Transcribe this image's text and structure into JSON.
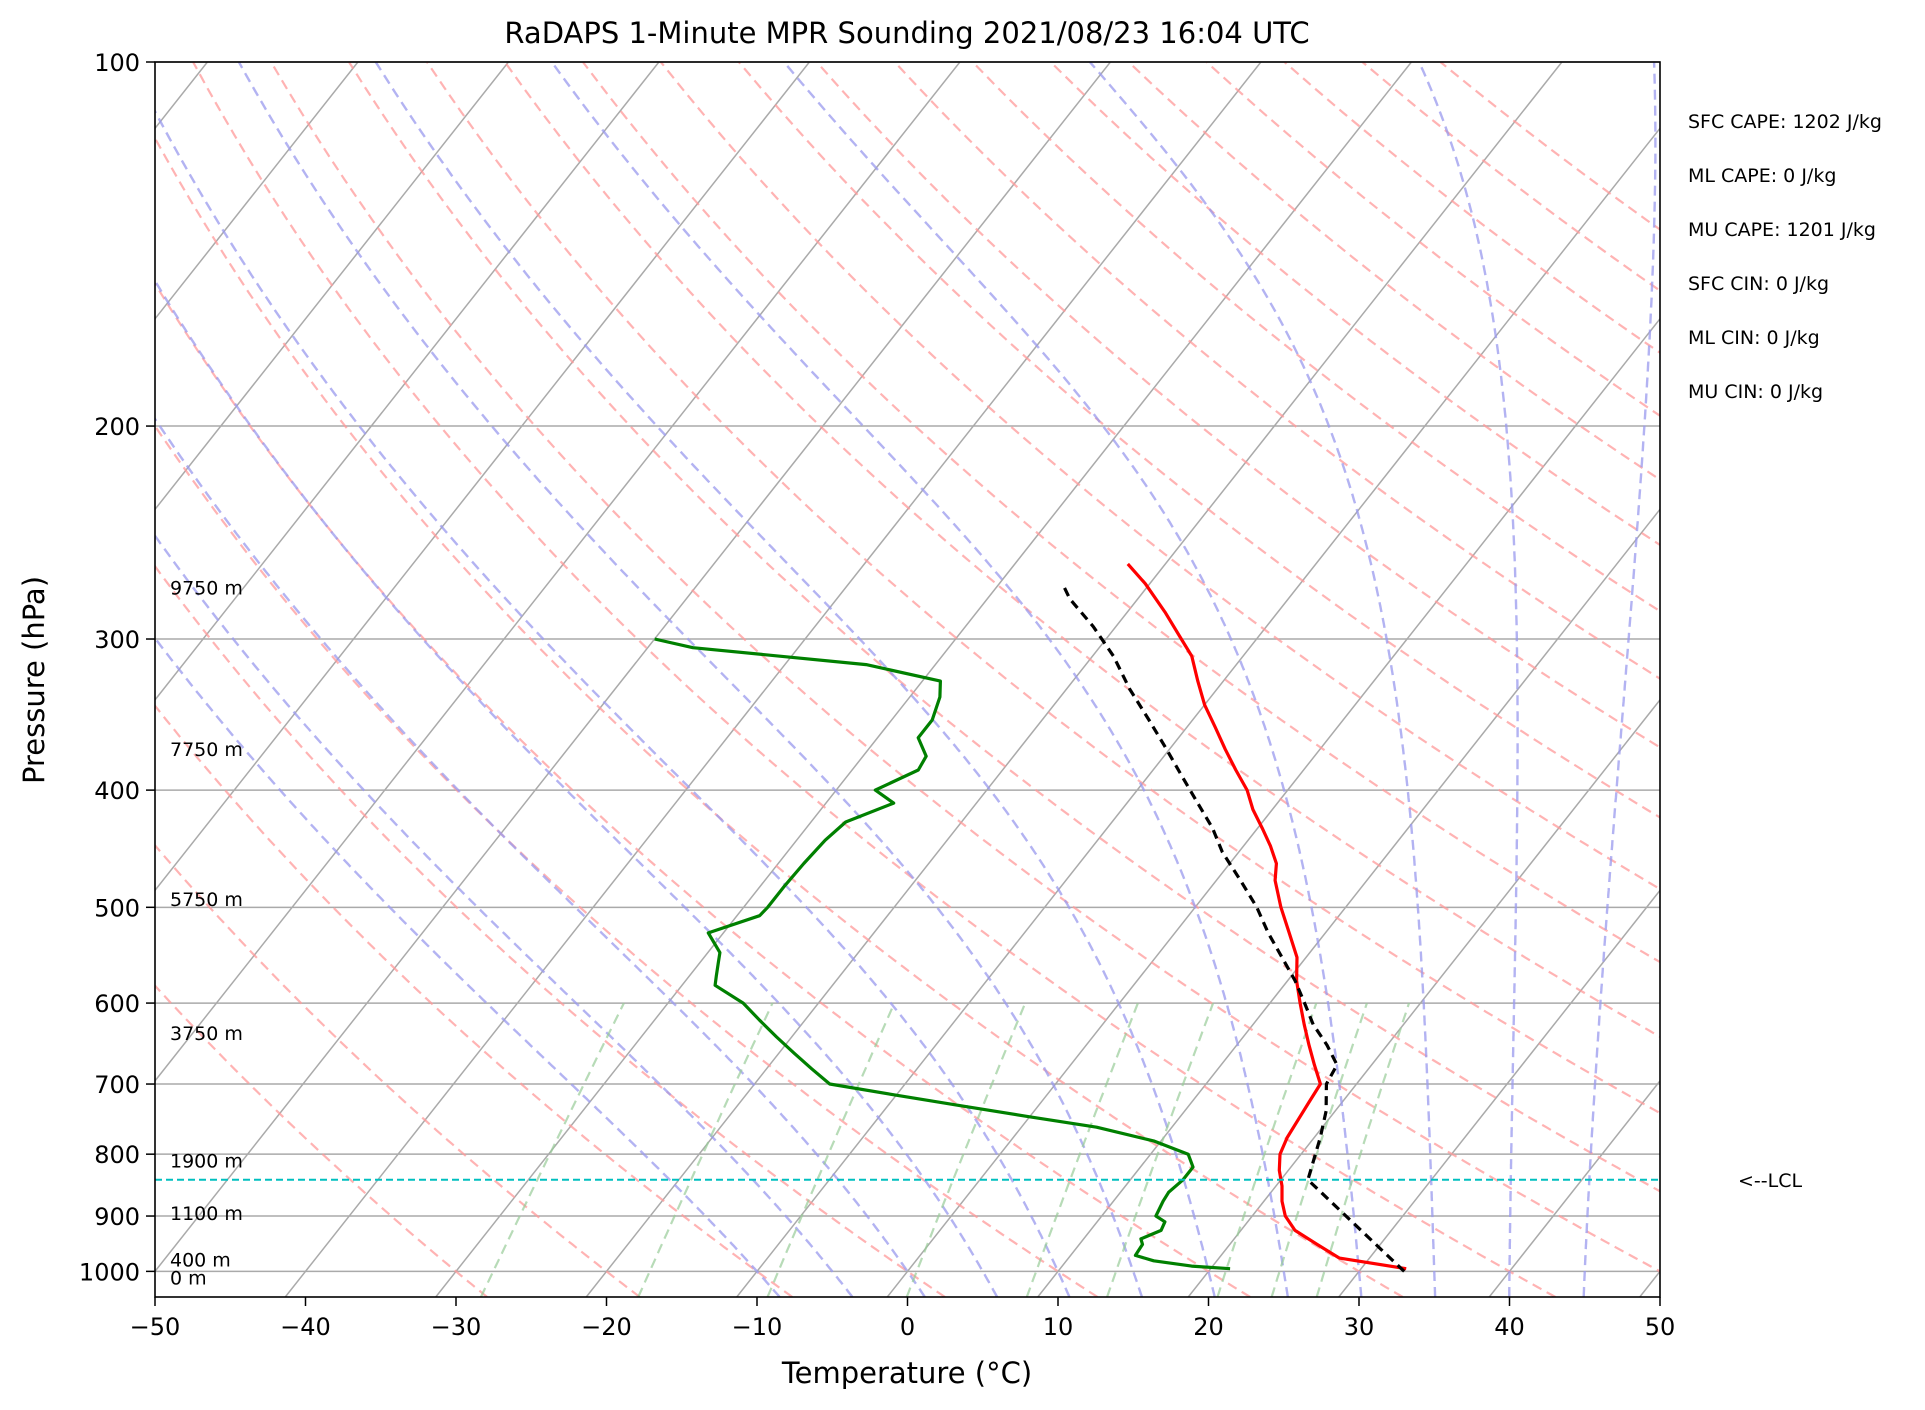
{
  "chart_data": {
    "type": "line",
    "title": "RaDAPS 1-Minute MPR Sounding 2021/08/23 16:04 UTC",
    "xlabel": "Temperature (°C)",
    "ylabel": "Pressure (hPa)",
    "xlim": [
      -50,
      50
    ],
    "ylim": [
      1050,
      100
    ],
    "y_scale": "log",
    "x_ticks": [
      -50,
      -40,
      -30,
      -20,
      -10,
      0,
      10,
      20,
      30,
      40,
      50
    ],
    "x_tick_labels": [
      "−50",
      "−40",
      "−30",
      "−20",
      "−10",
      "0",
      "10",
      "20",
      "30",
      "40",
      "50"
    ],
    "y_ticks": [
      100,
      200,
      300,
      400,
      500,
      600,
      700,
      800,
      900,
      1000
    ],
    "y_tick_labels": [
      "100",
      "200",
      "300",
      "400",
      "500",
      "600",
      "700",
      "800",
      "900",
      "1000"
    ],
    "grid": true,
    "series": [
      {
        "kind": "temperature",
        "color": "#ff0000",
        "points": [
          [
            33,
            995
          ],
          [
            28,
            975
          ],
          [
            25.8,
            950
          ],
          [
            23.6,
            925
          ],
          [
            22.2,
            900
          ],
          [
            21.2,
            875
          ],
          [
            20.4,
            850
          ],
          [
            19.4,
            825
          ],
          [
            18.6,
            800
          ],
          [
            18.2,
            775
          ],
          [
            18,
            750
          ],
          [
            17.8,
            725
          ],
          [
            17.6,
            700
          ],
          [
            16.2,
            675
          ],
          [
            14.8,
            650
          ],
          [
            13.4,
            625
          ],
          [
            12,
            600
          ],
          [
            10.6,
            575
          ],
          [
            9.4,
            550
          ],
          [
            7.6,
            525
          ],
          [
            5.7,
            500
          ],
          [
            3.9,
            475
          ],
          [
            3.1,
            460
          ],
          [
            1.8,
            445
          ],
          [
            0.3,
            430
          ],
          [
            -1.3,
            415
          ],
          [
            -2.7,
            400
          ],
          [
            -4.5,
            385
          ],
          [
            -6.3,
            370
          ],
          [
            -8.1,
            355
          ],
          [
            -10,
            340
          ],
          [
            -11.7,
            325
          ],
          [
            -13.4,
            310
          ],
          [
            -15,
            300
          ],
          [
            -17.5,
            285
          ],
          [
            -20.3,
            270
          ],
          [
            -22.5,
            260
          ]
        ]
      },
      {
        "kind": "dewpoint",
        "color": "#008000",
        "points": [
          [
            21.3,
            995
          ],
          [
            18.6,
            990
          ],
          [
            15.8,
            980
          ],
          [
            14.3,
            970
          ],
          [
            14.2,
            950
          ],
          [
            13.8,
            940
          ],
          [
            14.7,
            925
          ],
          [
            14.5,
            910
          ],
          [
            13.6,
            900
          ],
          [
            13.3,
            875
          ],
          [
            13.2,
            860
          ],
          [
            13.5,
            840
          ],
          [
            13.5,
            820
          ],
          [
            12.5,
            800
          ],
          [
            9.5,
            780
          ],
          [
            5,
            760
          ],
          [
            0,
            745
          ],
          [
            -5,
            730
          ],
          [
            -10,
            715
          ],
          [
            -15,
            700
          ],
          [
            -17,
            680
          ],
          [
            -19,
            660
          ],
          [
            -21,
            640
          ],
          [
            -23,
            620
          ],
          [
            -25,
            600
          ],
          [
            -27.8,
            580
          ],
          [
            -28.2,
            570
          ],
          [
            -28.8,
            555
          ],
          [
            -29.2,
            545
          ],
          [
            -31,
            525
          ],
          [
            -28.5,
            508
          ],
          [
            -28.4,
            500
          ],
          [
            -28.4,
            480
          ],
          [
            -28.3,
            460
          ],
          [
            -28.1,
            440
          ],
          [
            -27.7,
            425
          ],
          [
            -25.5,
            410
          ],
          [
            -27.4,
            400
          ],
          [
            -25.6,
            385
          ],
          [
            -25.8,
            375
          ],
          [
            -27.3,
            362
          ],
          [
            -27.3,
            350
          ],
          [
            -28,
            335
          ],
          [
            -28.8,
            325
          ],
          [
            -34.6,
            315
          ],
          [
            -47,
            305
          ],
          [
            -50,
            300
          ]
        ]
      },
      {
        "kind": "parcel",
        "color": "#000000",
        "points": [
          [
            33,
            1000
          ],
          [
            21.8,
            840
          ],
          [
            20.4,
            775
          ],
          [
            19.4,
            737
          ],
          [
            18,
            700
          ],
          [
            17.7,
            675
          ],
          [
            16,
            650
          ],
          [
            14,
            625
          ],
          [
            12.3,
            600
          ],
          [
            10.5,
            575
          ],
          [
            8.4,
            550
          ],
          [
            6.2,
            525
          ],
          [
            4.1,
            500
          ],
          [
            1.6,
            475
          ],
          [
            -1.1,
            450
          ],
          [
            -3,
            430
          ],
          [
            -5.3,
            410
          ],
          [
            -7.7,
            390
          ],
          [
            -10.2,
            370
          ],
          [
            -12.9,
            350
          ],
          [
            -15.8,
            330
          ],
          [
            -18.6,
            310
          ],
          [
            -21.5,
            293
          ],
          [
            -24.5,
            278
          ],
          [
            -25.8,
            270
          ]
        ]
      }
    ],
    "lcl_pressure": 840,
    "lcl_label": "<--LCL",
    "height_labels": [
      {
        "p": 272,
        "text": "9750 m"
      },
      {
        "p": 370,
        "text": "7750 m"
      },
      {
        "p": 492,
        "text": "5750 m"
      },
      {
        "p": 635,
        "text": "3750 m"
      },
      {
        "p": 810,
        "text": "1900 m"
      },
      {
        "p": 895,
        "text": "1100 m"
      },
      {
        "p": 978,
        "text": "400 m"
      },
      {
        "p": 1012,
        "text": "0 m"
      }
    ],
    "stats": [
      "SFC CAPE: 1202 J/kg",
      "ML CAPE: 0 J/kg",
      "MU CAPE: 1201 J/kg",
      "SFC CIN: 0 J/kg",
      "ML CIN: 0 J/kg",
      "MU CIN: 0 J/kg"
    ],
    "skew_isotherms": [
      -150,
      -140,
      -130,
      -120,
      -110,
      -100,
      -90,
      -80,
      -70,
      -60,
      -50,
      -40,
      -30,
      -20,
      -10,
      0,
      10,
      20,
      30,
      40,
      50
    ],
    "dry_adiabats_theta_c": [
      -30,
      -20,
      -10,
      0,
      10,
      20,
      30,
      40,
      50,
      60,
      70,
      80,
      90,
      100,
      110,
      120,
      130,
      140,
      150,
      160,
      170,
      180,
      190,
      200
    ],
    "moist_adiabats_start_c": [
      -10,
      -5,
      0,
      5,
      10,
      15,
      20,
      25,
      30,
      35,
      40,
      45
    ],
    "mixing_ratios_gkg": [
      0.4,
      1,
      2,
      4,
      7,
      10,
      16,
      20,
      24
    ],
    "colors": {
      "isotherm": "#aaaaaa",
      "dry_adiabat": "#ff9999",
      "moist_adiabat": "#9999ee",
      "mixing_ratio": "#99cc99",
      "lcl": "#00bfbf",
      "axis": "#000000"
    }
  }
}
